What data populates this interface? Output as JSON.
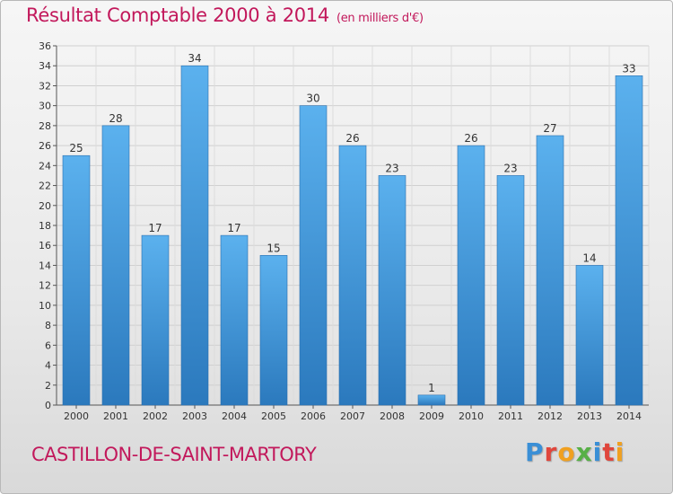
{
  "title": "Résultat Comptable 2000 à 2014",
  "subtitle": "(en milliers d'€)",
  "commune": "CASTILLON-DE-SAINT-MARTORY",
  "logo": {
    "letters": [
      "P",
      "r",
      "o",
      "x",
      "i",
      "t",
      "i"
    ],
    "colors": [
      "#3a8fd6",
      "#e0463c",
      "#f0a020",
      "#57b046",
      "#3a8fd6",
      "#e0463c",
      "#f0a020"
    ]
  },
  "colors": {
    "bar": "#4fa6e6",
    "bar_dark": "#2f7fc4",
    "accent": "#c2185b"
  },
  "chart_data": {
    "type": "bar",
    "categories": [
      "2000",
      "2001",
      "2002",
      "2003",
      "2004",
      "2005",
      "2006",
      "2007",
      "2008",
      "2009",
      "2010",
      "2011",
      "2012",
      "2013",
      "2014"
    ],
    "values": [
      25,
      28,
      17,
      34,
      17,
      15,
      30,
      26,
      23,
      1,
      26,
      23,
      27,
      14,
      33
    ],
    "title": "Résultat Comptable 2000 à 2014",
    "xlabel": "",
    "ylabel": "",
    "ylim": [
      0,
      36
    ],
    "yticks": [
      0,
      2,
      4,
      6,
      8,
      10,
      12,
      14,
      16,
      18,
      20,
      22,
      24,
      26,
      28,
      30,
      32,
      34,
      36
    ],
    "grid": true,
    "legend": "none"
  }
}
